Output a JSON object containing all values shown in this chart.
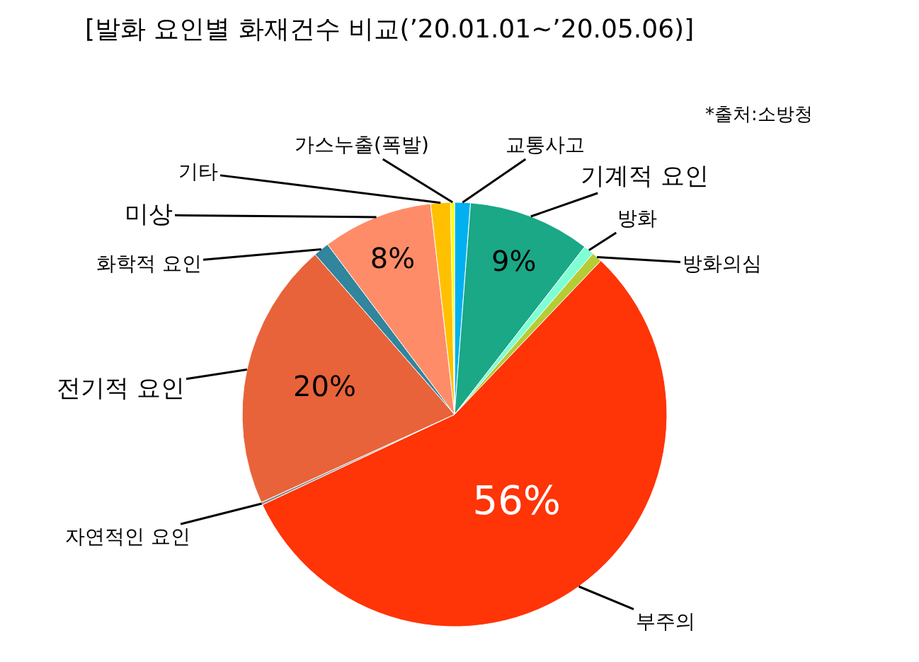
{
  "chart_data": {
    "type": "pie",
    "title": "[발화 요인별 화재건수 비교(’20.01.01~’20.05.06)]",
    "annotations": [
      "*출처:소방청"
    ],
    "categories": [
      "교통사고",
      "기계적 요인",
      "방화",
      "방화의심",
      "부주의",
      "자연적인 요인",
      "전기적 요인",
      "화학적 요인",
      "미상",
      "기타",
      "가스누출(폭발)"
    ],
    "values": [
      1.2,
      9.3,
      0.8,
      0.8,
      55.9,
      0.2,
      20.4,
      1.2,
      8.4,
      1.5,
      0.3
    ],
    "value_labels": [
      null,
      "9%",
      null,
      null,
      "56%",
      null,
      "20%",
      null,
      "8%",
      null,
      null
    ],
    "colors": [
      "#00b0f0",
      "#1aa887",
      "#7fffd4",
      "#b5cc35",
      "#ff3407",
      "#8a8a8a",
      "#e8633a",
      "#31859c",
      "#ff8c69",
      "#ffc000",
      "#ffff00"
    ],
    "legend": false
  }
}
